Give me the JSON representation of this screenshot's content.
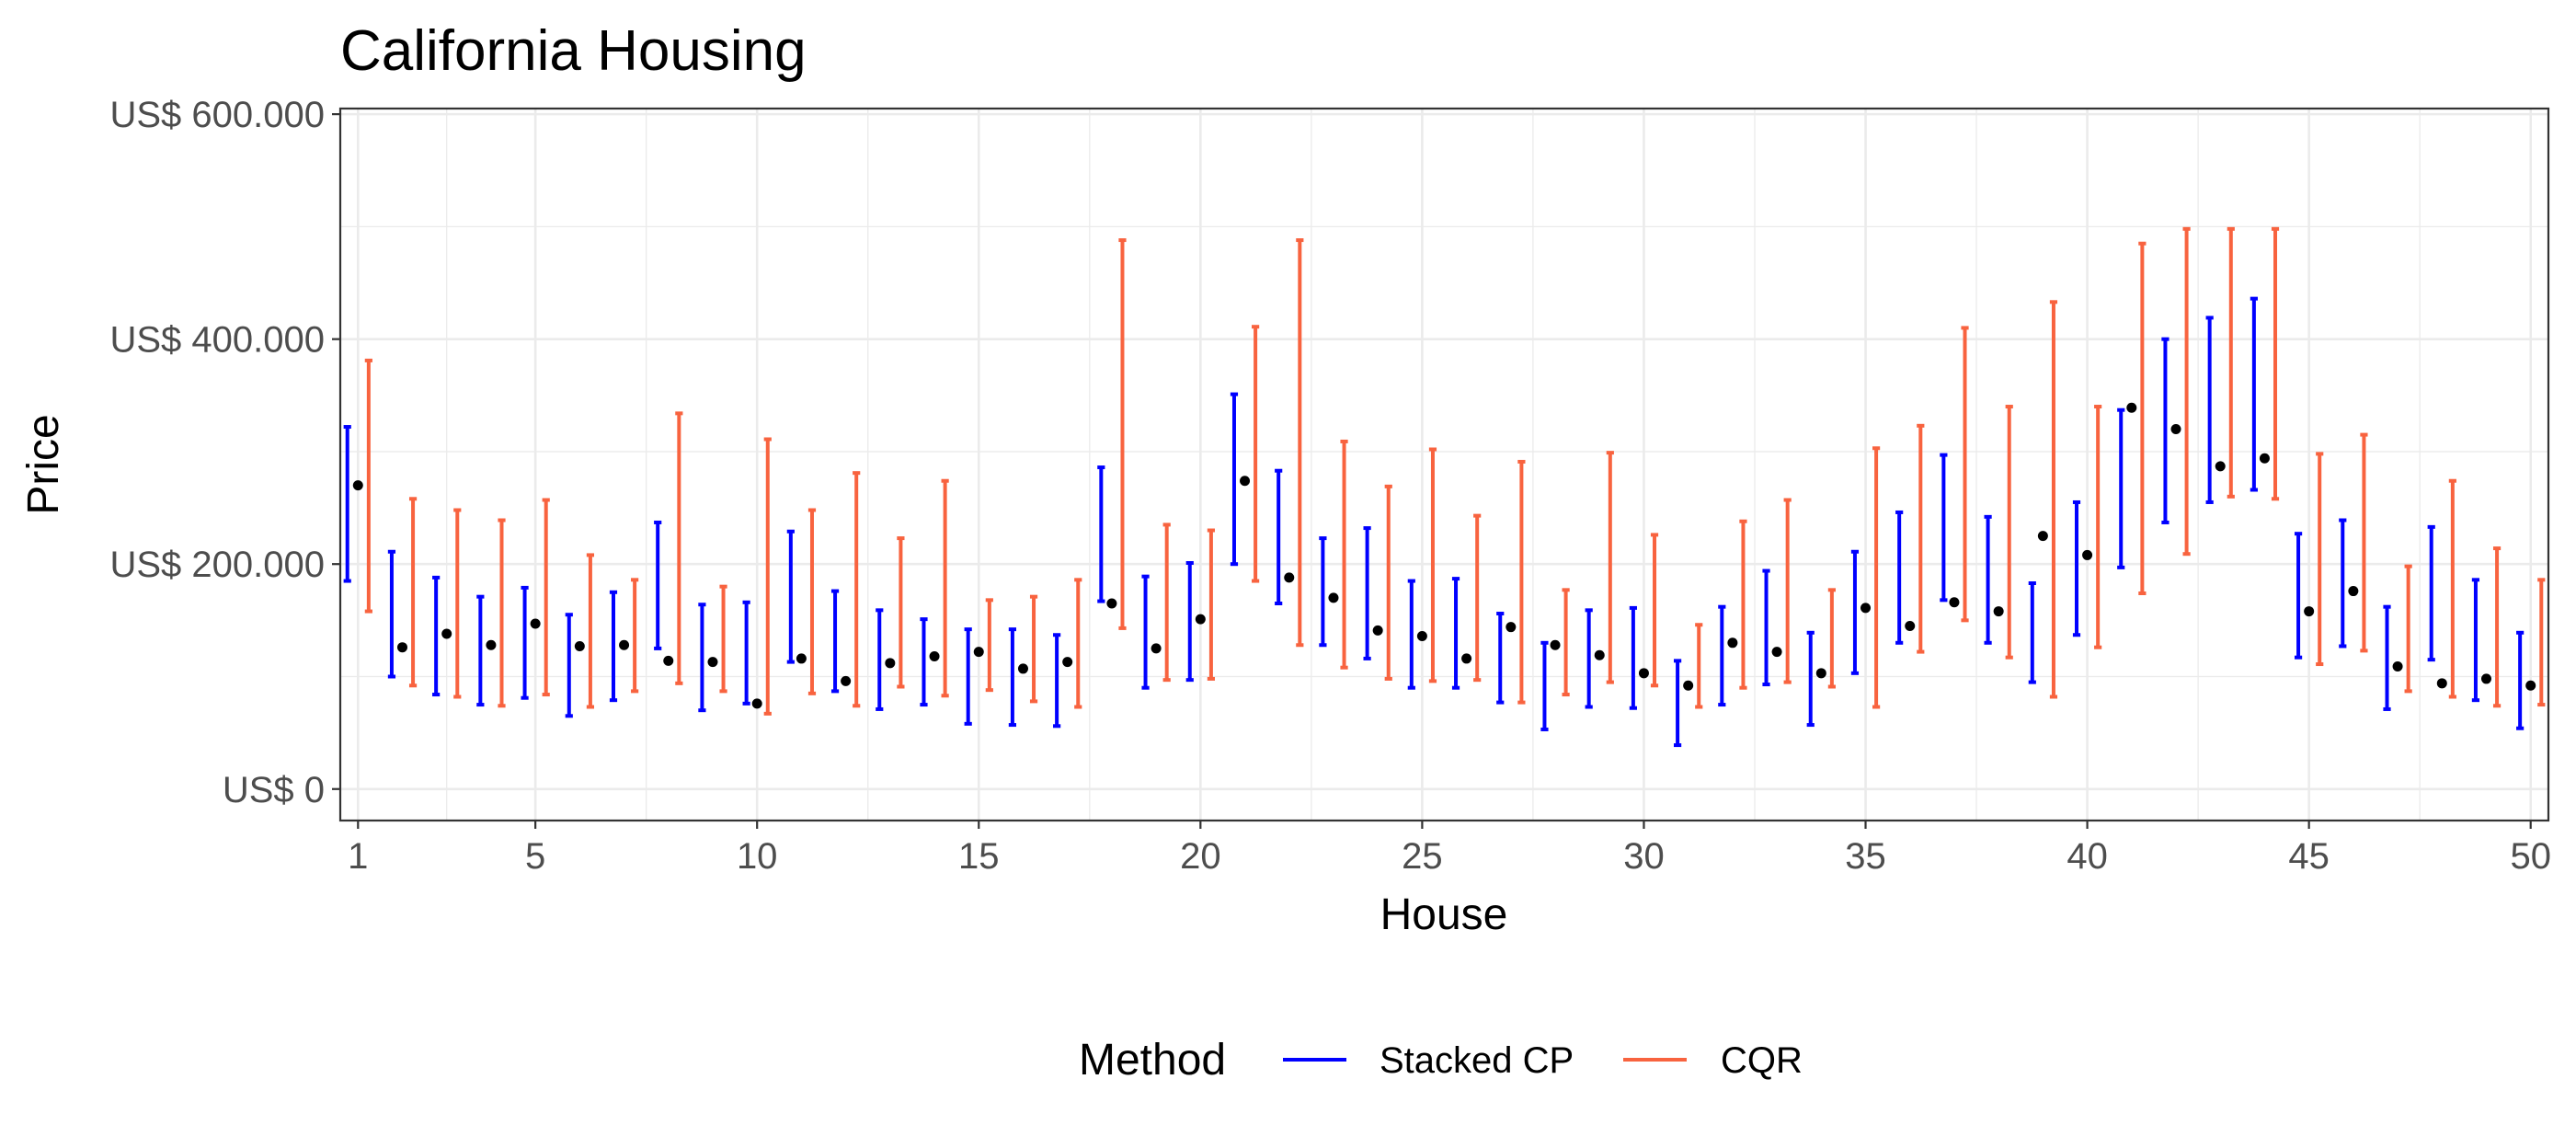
{
  "chart_data": {
    "type": "errorbar",
    "title": "California Housing",
    "xlabel": "House",
    "ylabel": "Price",
    "x_ticks": [
      1,
      5,
      10,
      15,
      20,
      25,
      30,
      35,
      40,
      45,
      50
    ],
    "y_ticks": [
      {
        "value": 0,
        "label": "US$ 0"
      },
      {
        "value": 200000,
        "label": "US$ 200.000"
      },
      {
        "value": 400000,
        "label": "US$ 400.000"
      },
      {
        "value": 600000,
        "label": "US$ 600.000"
      }
    ],
    "xlim": [
      0.6,
      50.4
    ],
    "ylim": [
      -28000,
      605000
    ],
    "grid": true,
    "legend": {
      "title": "Method",
      "position": "bottom"
    },
    "series": [
      {
        "name": "Stacked CP",
        "color": "#0000ff",
        "lower": [
          185000,
          100000,
          84000,
          75000,
          81000,
          65000,
          79000,
          125000,
          70000,
          76000,
          113000,
          87000,
          71000,
          75000,
          58000,
          57000,
          56000,
          167000,
          90000,
          97000,
          200000,
          165000,
          128000,
          116000,
          90000,
          90000,
          77000,
          53000,
          73000,
          72000,
          39000,
          75000,
          93000,
          57000,
          103000,
          130000,
          168000,
          130000,
          95000,
          137000,
          197000,
          237000,
          255000,
          266000,
          117000,
          127000,
          71000,
          115000,
          79000,
          54000
        ],
        "upper": [
          322000,
          211000,
          188000,
          171000,
          179000,
          155000,
          175000,
          237000,
          164000,
          166000,
          229000,
          176000,
          159000,
          151000,
          142000,
          142000,
          137000,
          286000,
          189000,
          201000,
          351000,
          283000,
          223000,
          232000,
          185000,
          187000,
          156000,
          130000,
          159000,
          161000,
          114000,
          162000,
          194000,
          139000,
          211000,
          246000,
          297000,
          242000,
          183000,
          255000,
          337000,
          400000,
          419000,
          436000,
          227000,
          239000,
          162000,
          233000,
          186000,
          139000
        ]
      },
      {
        "name": "CQR",
        "color": "#f8633f",
        "lower": [
          158000,
          92000,
          82000,
          74000,
          84000,
          73000,
          87000,
          94000,
          87000,
          67000,
          85000,
          74000,
          91000,
          83000,
          88000,
          78000,
          73000,
          143000,
          97000,
          98000,
          185000,
          128000,
          108000,
          98000,
          96000,
          97000,
          77000,
          84000,
          95000,
          92000,
          73000,
          90000,
          95000,
          91000,
          73000,
          122000,
          150000,
          117000,
          82000,
          126000,
          174000,
          209000,
          260000,
          258000,
          111000,
          123000,
          87000,
          82000,
          74000,
          75000
        ],
        "upper": [
          381000,
          258000,
          248000,
          239000,
          257000,
          208000,
          186000,
          334000,
          180000,
          311000,
          248000,
          281000,
          223000,
          274000,
          168000,
          171000,
          186000,
          488000,
          235000,
          230000,
          411000,
          488000,
          309000,
          269000,
          302000,
          243000,
          291000,
          177000,
          299000,
          226000,
          146000,
          238000,
          257000,
          177000,
          303000,
          323000,
          410000,
          340000,
          433000,
          340000,
          485000,
          498000,
          498000,
          498000,
          298000,
          315000,
          198000,
          274000,
          214000,
          186000
        ]
      }
    ],
    "points": [
      270000,
      126000,
      138000,
      128000,
      147000,
      127000,
      128000,
      114000,
      113000,
      76000,
      116000,
      96000,
      112000,
      118000,
      122000,
      107000,
      113000,
      165000,
      125000,
      151000,
      274000,
      188000,
      170000,
      141000,
      136000,
      116000,
      144000,
      128000,
      119000,
      103000,
      92000,
      130000,
      122000,
      103000,
      161000,
      145000,
      166000,
      158000,
      225000,
      208000,
      339000,
      320000,
      287000,
      294000,
      158000,
      176000,
      109000,
      94000,
      98000,
      92000
    ]
  }
}
